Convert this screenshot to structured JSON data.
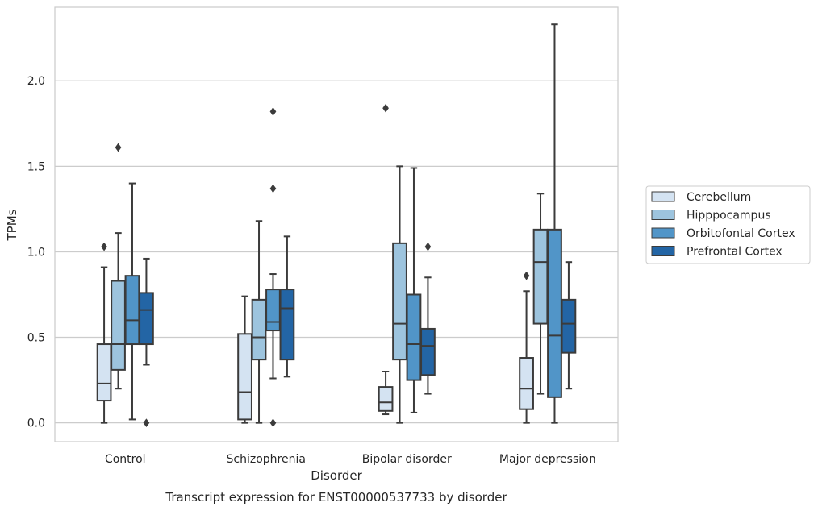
{
  "chart_data": {
    "type": "box",
    "title": "Transcript expression for ENST00000537733 by disorder",
    "xlabel": "Disorder",
    "ylabel": "TPMs",
    "ylim": [
      -0.11,
      2.43
    ],
    "yticks": [
      "0.0",
      "0.5",
      "1.0",
      "1.5",
      "2.0"
    ],
    "ytick_values": [
      0.0,
      0.5,
      1.0,
      1.5,
      2.0
    ],
    "grid": true,
    "legend_position": "right",
    "categories": [
      "Control",
      "Schizophrenia",
      "Bipolar disorder",
      "Major depression"
    ],
    "series": [
      {
        "name": "Cerebellum",
        "color": "#d4e3f2",
        "boxes": [
          {
            "min": 0.0,
            "q1": 0.13,
            "median": 0.23,
            "q3": 0.46,
            "max": 0.91,
            "outliers": [
              1.03
            ]
          },
          {
            "min": 0.0,
            "q1": 0.02,
            "median": 0.18,
            "q3": 0.52,
            "max": 0.74,
            "outliers": []
          },
          {
            "min": 0.05,
            "q1": 0.07,
            "median": 0.12,
            "q3": 0.21,
            "max": 0.3,
            "outliers": [
              1.84
            ]
          },
          {
            "min": 0.0,
            "q1": 0.08,
            "median": 0.2,
            "q3": 0.38,
            "max": 0.77,
            "outliers": [
              0.86
            ]
          }
        ]
      },
      {
        "name": "Hipppocampus",
        "color": "#9dc4de",
        "boxes": [
          {
            "min": 0.2,
            "q1": 0.31,
            "median": 0.46,
            "q3": 0.83,
            "max": 1.11,
            "outliers": [
              1.61
            ]
          },
          {
            "min": 0.0,
            "q1": 0.37,
            "median": 0.5,
            "q3": 0.72,
            "max": 1.18,
            "outliers": []
          },
          {
            "min": 0.0,
            "q1": 0.37,
            "median": 0.58,
            "q3": 1.05,
            "max": 1.5,
            "outliers": []
          },
          {
            "min": 0.17,
            "q1": 0.58,
            "median": 0.94,
            "q3": 1.13,
            "max": 1.34,
            "outliers": []
          }
        ]
      },
      {
        "name": "Orbitofontal Cortex",
        "color": "#5195c8",
        "boxes": [
          {
            "min": 0.02,
            "q1": 0.46,
            "median": 0.6,
            "q3": 0.86,
            "max": 1.4,
            "outliers": []
          },
          {
            "min": 0.26,
            "q1": 0.54,
            "median": 0.59,
            "q3": 0.78,
            "max": 0.87,
            "outliers": [
              1.37,
              1.82,
              0.0
            ]
          },
          {
            "min": 0.06,
            "q1": 0.25,
            "median": 0.46,
            "q3": 0.75,
            "max": 1.49,
            "outliers": []
          },
          {
            "min": 0.0,
            "q1": 0.15,
            "median": 0.51,
            "q3": 1.13,
            "max": 2.33,
            "outliers": []
          }
        ]
      },
      {
        "name": "Prefrontal Cortex",
        "color": "#2365a5",
        "boxes": [
          {
            "min": 0.34,
            "q1": 0.46,
            "median": 0.66,
            "q3": 0.76,
            "max": 0.96,
            "outliers": [
              0.0
            ]
          },
          {
            "min": 0.27,
            "q1": 0.37,
            "median": 0.67,
            "q3": 0.78,
            "max": 1.09,
            "outliers": []
          },
          {
            "min": 0.17,
            "q1": 0.28,
            "median": 0.45,
            "q3": 0.55,
            "max": 0.85,
            "outliers": [
              1.03
            ]
          },
          {
            "min": 0.2,
            "q1": 0.41,
            "median": 0.58,
            "q3": 0.72,
            "max": 0.94,
            "outliers": []
          }
        ]
      }
    ]
  }
}
